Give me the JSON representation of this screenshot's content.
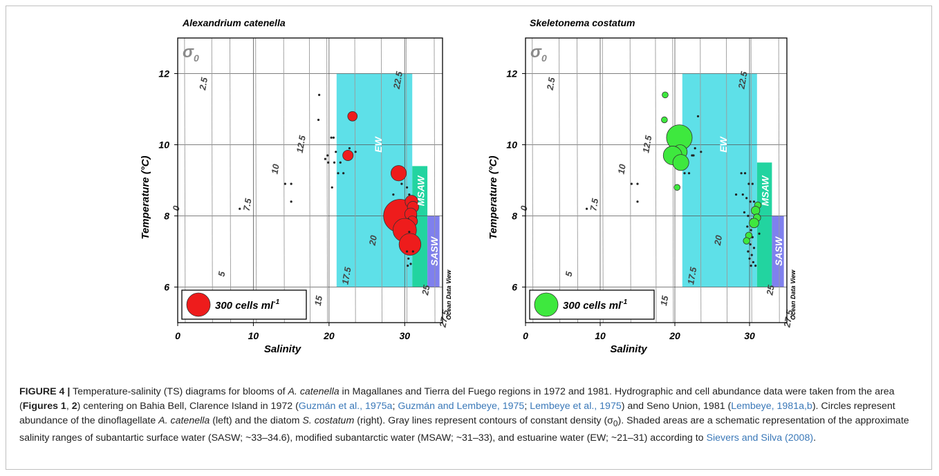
{
  "chart_data": [
    {
      "type": "scatter",
      "title": "Alexandrium catenella",
      "xlabel": "Salinity",
      "ylabel": "Temperature (°C)",
      "xlim": [
        0,
        35
      ],
      "ylim": [
        5,
        13
      ],
      "xticks": [
        "0",
        "10",
        "20",
        "30"
      ],
      "yticks": [
        "6",
        "8",
        "10",
        "12"
      ],
      "grid": true,
      "density_symbol": "σ",
      "density_subscript": "0",
      "density_contours": [
        "0",
        "2.5",
        "5",
        "7.5",
        "10",
        "12.5",
        "15",
        "17.5",
        "20",
        "22.5",
        "25",
        "27.5"
      ],
      "water_masses": [
        {
          "label": "EW",
          "salinity": [
            21,
            31
          ],
          "temperature": [
            6,
            12
          ],
          "color": "#5ee0e8"
        },
        {
          "label": "MSAW",
          "salinity": [
            31,
            33
          ],
          "temperature": [
            6,
            9.4
          ],
          "color": "#22d4a0"
        },
        {
          "label": "SASW",
          "salinity": [
            33,
            34.6
          ],
          "temperature": [
            6,
            8
          ],
          "color": "#7f80ee"
        }
      ],
      "marker_color": "#ee1c1c",
      "legend": {
        "label": "300 cells ml",
        "superscript": "-1",
        "position": "bottom-left"
      },
      "watermark": "Ocean Data View",
      "points": [
        {
          "x": 8.2,
          "y": 8.2,
          "r": 0
        },
        {
          "x": 14.2,
          "y": 8.9,
          "r": 0
        },
        {
          "x": 15,
          "y": 8.9,
          "r": 0
        },
        {
          "x": 15,
          "y": 8.4,
          "r": 0
        },
        {
          "x": 18.7,
          "y": 11.4,
          "r": 0
        },
        {
          "x": 18.6,
          "y": 10.7,
          "r": 0
        },
        {
          "x": 19.5,
          "y": 9.6,
          "r": 0
        },
        {
          "x": 19.8,
          "y": 9.7,
          "r": 0
        },
        {
          "x": 19.9,
          "y": 9.5,
          "r": 0
        },
        {
          "x": 20.3,
          "y": 10.2,
          "r": 0
        },
        {
          "x": 20.6,
          "y": 10.2,
          "r": 0
        },
        {
          "x": 20.9,
          "y": 9.8,
          "r": 0
        },
        {
          "x": 20.7,
          "y": 9.5,
          "r": 0
        },
        {
          "x": 21.2,
          "y": 9.2,
          "r": 0
        },
        {
          "x": 20.4,
          "y": 8.8,
          "r": 0
        },
        {
          "x": 21.5,
          "y": 9.5,
          "r": 0
        },
        {
          "x": 21.9,
          "y": 9.2,
          "r": 0
        },
        {
          "x": 22.3,
          "y": 9.7,
          "r": 0
        },
        {
          "x": 22.7,
          "y": 9.9,
          "r": 0
        },
        {
          "x": 23.1,
          "y": 10.8,
          "r": 25
        },
        {
          "x": 22.5,
          "y": 9.7,
          "r": 30
        },
        {
          "x": 23.5,
          "y": 9.8,
          "r": 0
        },
        {
          "x": 29.2,
          "y": 9.2,
          "r": 65
        },
        {
          "x": 28.5,
          "y": 8.6,
          "r": 0
        },
        {
          "x": 29.6,
          "y": 8.9,
          "r": 0
        },
        {
          "x": 30.3,
          "y": 8.8,
          "r": 0
        },
        {
          "x": 30.6,
          "y": 8.6,
          "r": 0
        },
        {
          "x": 29.8,
          "y": 8.3,
          "r": 0
        },
        {
          "x": 30.1,
          "y": 8.1,
          "r": 0
        },
        {
          "x": 29.4,
          "y": 8.0,
          "r": 300
        },
        {
          "x": 30.9,
          "y": 8.4,
          "r": 45
        },
        {
          "x": 31.1,
          "y": 8.25,
          "r": 35
        },
        {
          "x": 30.8,
          "y": 8.05,
          "r": 40
        },
        {
          "x": 31,
          "y": 7.85,
          "r": 30
        },
        {
          "x": 30.5,
          "y": 7.9,
          "r": 0
        },
        {
          "x": 30.0,
          "y": 7.6,
          "r": 150
        },
        {
          "x": 30.6,
          "y": 7.55,
          "r": 0
        },
        {
          "x": 30.2,
          "y": 7.3,
          "r": 0
        },
        {
          "x": 30.7,
          "y": 7.2,
          "r": 130
        },
        {
          "x": 30.3,
          "y": 7.0,
          "r": 0
        },
        {
          "x": 30.5,
          "y": 6.8,
          "r": 0
        },
        {
          "x": 30.8,
          "y": 6.65,
          "r": 0
        },
        {
          "x": 30.4,
          "y": 6.6,
          "r": 0
        },
        {
          "x": 31.1,
          "y": 7.0,
          "r": 0
        }
      ]
    },
    {
      "type": "scatter",
      "title": "Skeletonema costatum",
      "xlabel": "Salinity",
      "ylabel": "Temperature (°C)",
      "xlim": [
        0,
        35
      ],
      "ylim": [
        5,
        13
      ],
      "xticks": [
        "0",
        "10",
        "20",
        "30"
      ],
      "yticks": [
        "6",
        "8",
        "10",
        "12"
      ],
      "grid": true,
      "density_symbol": "σ",
      "density_subscript": "0",
      "density_contours": [
        "0",
        "2.5",
        "5",
        "7.5",
        "10",
        "12.5",
        "15",
        "17.5",
        "20",
        "22.5",
        "25",
        "27.5"
      ],
      "water_masses": [
        {
          "label": "EW",
          "salinity": [
            21,
            31
          ],
          "temperature": [
            6,
            12
          ],
          "color": "#5ee0e8"
        },
        {
          "label": "MSAW",
          "salinity": [
            31,
            33
          ],
          "temperature": [
            6,
            9.5
          ],
          "color": "#22d4a0"
        },
        {
          "label": "SASW",
          "salinity": [
            33,
            34.6
          ],
          "temperature": [
            6,
            8
          ],
          "color": "#7f80ee"
        }
      ],
      "marker_color": "#3ee83e",
      "legend": {
        "label": "300 cells ml",
        "superscript": "-1",
        "position": "bottom-left"
      },
      "watermark": "Ocean Data View",
      "points": [
        {
          "x": 8.2,
          "y": 8.2,
          "r": 0
        },
        {
          "x": 14.2,
          "y": 8.9,
          "r": 0
        },
        {
          "x": 15,
          "y": 8.9,
          "r": 0
        },
        {
          "x": 15,
          "y": 8.4,
          "r": 0
        },
        {
          "x": 18.7,
          "y": 11.4,
          "r": 10
        },
        {
          "x": 18.6,
          "y": 10.7,
          "r": 10
        },
        {
          "x": 20.6,
          "y": 10.2,
          "r": 180
        },
        {
          "x": 20.7,
          "y": 9.8,
          "r": 55
        },
        {
          "x": 19.7,
          "y": 9.7,
          "r": 95
        },
        {
          "x": 20.8,
          "y": 9.5,
          "r": 70
        },
        {
          "x": 20.3,
          "y": 8.8,
          "r": 10
        },
        {
          "x": 21.3,
          "y": 9.2,
          "r": 0
        },
        {
          "x": 21.9,
          "y": 9.2,
          "r": 0
        },
        {
          "x": 22.3,
          "y": 9.7,
          "r": 0
        },
        {
          "x": 22.7,
          "y": 9.9,
          "r": 0
        },
        {
          "x": 23.1,
          "y": 10.8,
          "r": 0
        },
        {
          "x": 23.5,
          "y": 9.8,
          "r": 0
        },
        {
          "x": 22.5,
          "y": 9.7,
          "r": 0
        },
        {
          "x": 28.2,
          "y": 8.6,
          "r": 0
        },
        {
          "x": 28.9,
          "y": 9.2,
          "r": 0
        },
        {
          "x": 29.4,
          "y": 9.2,
          "r": 0
        },
        {
          "x": 29.9,
          "y": 8.9,
          "r": 0
        },
        {
          "x": 30.4,
          "y": 8.9,
          "r": 0
        },
        {
          "x": 29.1,
          "y": 8.6,
          "r": 0
        },
        {
          "x": 29.6,
          "y": 8.5,
          "r": 0
        },
        {
          "x": 30.1,
          "y": 8.4,
          "r": 0
        },
        {
          "x": 30.6,
          "y": 8.4,
          "r": 0
        },
        {
          "x": 31.1,
          "y": 8.3,
          "r": 12
        },
        {
          "x": 29.3,
          "y": 8.1,
          "r": 0
        },
        {
          "x": 29.8,
          "y": 8.0,
          "r": 0
        },
        {
          "x": 30.3,
          "y": 7.9,
          "r": 0
        },
        {
          "x": 30.8,
          "y": 8.15,
          "r": 20
        },
        {
          "x": 31.0,
          "y": 7.95,
          "r": 15
        },
        {
          "x": 30.6,
          "y": 7.8,
          "r": 25
        },
        {
          "x": 29.7,
          "y": 7.7,
          "r": 0
        },
        {
          "x": 30.2,
          "y": 7.6,
          "r": 0
        },
        {
          "x": 29.9,
          "y": 7.45,
          "r": 12
        },
        {
          "x": 30.4,
          "y": 7.4,
          "r": 0
        },
        {
          "x": 29.6,
          "y": 7.3,
          "r": 12
        },
        {
          "x": 30.1,
          "y": 7.2,
          "r": 0
        },
        {
          "x": 30.6,
          "y": 7.1,
          "r": 0
        },
        {
          "x": 29.8,
          "y": 7.0,
          "r": 0
        },
        {
          "x": 30.3,
          "y": 6.9,
          "r": 0
        },
        {
          "x": 30.0,
          "y": 6.8,
          "r": 0
        },
        {
          "x": 30.5,
          "y": 6.7,
          "r": 0
        },
        {
          "x": 30.8,
          "y": 6.6,
          "r": 0
        },
        {
          "x": 30.2,
          "y": 6.6,
          "r": 0
        },
        {
          "x": 31.3,
          "y": 7.5,
          "r": 0
        }
      ]
    }
  ],
  "caption": {
    "label": "FIGURE 4 |",
    "p1": " Temperature-salinity (TS) diagrams for blooms of ",
    "sp1": "A. catenella",
    "p2": " in Magallanes and Tierra del Fuego regions in 1972 and 1981. Hydrographic and cell abundance data were taken from the area (",
    "figs": "Figures 1",
    "comma": ", ",
    "figs2": "2",
    "p3": ") centering on Bahia Bell, Clarence Island in 1972 (",
    "cite1": "Guzmán et al., 1975a",
    "sep1": "; ",
    "cite2": "Guzmán and Lembeye, 1975",
    "sep2": "; ",
    "cite3": "Lembeye et al., 1975",
    "p4": ") and Seno Union, 1981 (",
    "cite4": "Lembeye, 1981a,b",
    "p5": "). Circles represent abundance of the dinoflagellate ",
    "sp2": "A. catenella",
    "p6": " (left) and the diatom ",
    "sp3": "S. costatum",
    "p7": " (right). Gray lines represent contours of constant density (σ",
    "sub0": "0",
    "p8": "). Shaded areas are a schematic representation of the approximate salinity ranges of subantartic surface water (SASW; ~33–34.6), modified subantarctic water (MSAW; ~31–33), and estuarine water (EW; ~21–31) according to ",
    "cite5": "Sievers and Silva (2008)",
    "p9": "."
  }
}
